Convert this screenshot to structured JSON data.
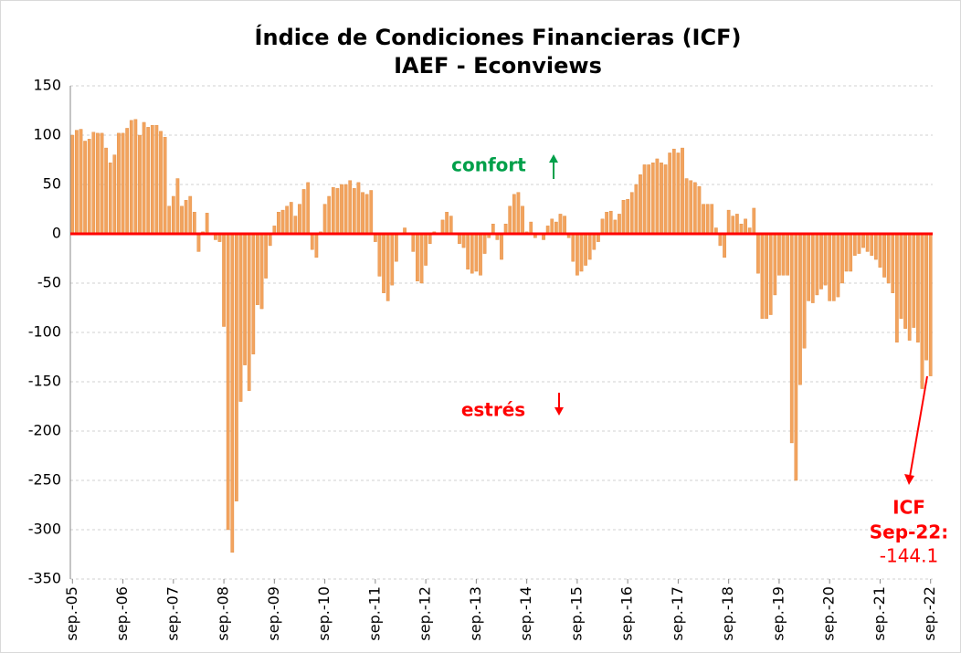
{
  "chart_data": {
    "type": "bar",
    "title": "Índice de Condiciones Financieras (ICF)",
    "subtitle": "IAEF - Econviews",
    "color": "#f2a35e",
    "zero_line_color": "#ff0000",
    "grid": true,
    "ylim": [
      -350,
      150
    ],
    "yticks": [
      150,
      100,
      50,
      0,
      -50,
      -100,
      -150,
      -200,
      -250,
      -300,
      -350
    ],
    "annotations": {
      "up": "confort",
      "down": "estrés",
      "last_title": "ICF",
      "last_date": "Sep-22:"
    },
    "categories": [
      "sep.-05",
      null,
      null,
      null,
      null,
      null,
      null,
      null,
      null,
      null,
      null,
      null,
      "sep.-06",
      null,
      null,
      null,
      null,
      null,
      null,
      null,
      null,
      null,
      null,
      null,
      "sep.-07",
      null,
      null,
      null,
      null,
      null,
      null,
      null,
      null,
      null,
      null,
      null,
      "sep.-08",
      null,
      null,
      null,
      null,
      null,
      null,
      null,
      null,
      null,
      null,
      null,
      "sep.-09",
      null,
      null,
      null,
      null,
      null,
      null,
      null,
      null,
      null,
      null,
      null,
      "sep.-10",
      null,
      null,
      null,
      null,
      null,
      null,
      null,
      null,
      null,
      null,
      null,
      "sep.-11",
      null,
      null,
      null,
      null,
      null,
      null,
      null,
      null,
      null,
      null,
      null,
      "sep.-12",
      null,
      null,
      null,
      null,
      null,
      null,
      null,
      null,
      null,
      null,
      null,
      "sep.-13",
      null,
      null,
      null,
      null,
      null,
      null,
      null,
      null,
      null,
      null,
      null,
      "sep.-14",
      null,
      null,
      null,
      null,
      null,
      null,
      null,
      null,
      null,
      null,
      null,
      "sep.-15",
      null,
      null,
      null,
      null,
      null,
      null,
      null,
      null,
      null,
      null,
      null,
      "sep.-16",
      null,
      null,
      null,
      null,
      null,
      null,
      null,
      null,
      null,
      null,
      null,
      "sep.-17",
      null,
      null,
      null,
      null,
      null,
      null,
      null,
      null,
      null,
      null,
      null,
      "sep.-18",
      null,
      null,
      null,
      null,
      null,
      null,
      null,
      null,
      null,
      null,
      null,
      "sep.-19",
      null,
      null,
      null,
      null,
      null,
      null,
      null,
      null,
      null,
      null,
      null,
      "sep.-20",
      null,
      null,
      null,
      null,
      null,
      null,
      null,
      null,
      null,
      null,
      null,
      "sep.-21",
      null,
      null,
      null,
      null,
      null,
      null,
      null,
      null,
      null,
      null,
      null,
      "sep.-22"
    ],
    "values": [
      100,
      105,
      106,
      94,
      96,
      103,
      102,
      102,
      87,
      72,
      80,
      102,
      102,
      107,
      115,
      116,
      100,
      113,
      108,
      110,
      110,
      104,
      98,
      28,
      38,
      56,
      28,
      34,
      38,
      22,
      -18,
      2,
      21,
      0,
      -6,
      -8,
      -94,
      -300,
      -323,
      -271,
      -170,
      -133,
      -159,
      -122,
      -72,
      -76,
      -45,
      -12,
      8,
      22,
      24,
      28,
      32,
      18,
      30,
      45,
      52,
      -16,
      -24,
      2,
      30,
      38,
      47,
      46,
      50,
      50,
      54,
      46,
      52,
      42,
      40,
      44,
      -8,
      -43,
      -60,
      -68,
      -52,
      -28,
      0,
      6,
      0,
      -18,
      -48,
      -50,
      -32,
      -10,
      2,
      0,
      14,
      22,
      18,
      0,
      -10,
      -14,
      -36,
      -40,
      -38,
      -42,
      -20,
      -4,
      10,
      -6,
      -26,
      10,
      28,
      40,
      42,
      28,
      2,
      12,
      -4,
      0,
      -6,
      8,
      15,
      12,
      20,
      18,
      -4,
      -28,
      -42,
      -38,
      -32,
      -26,
      -16,
      -8,
      15,
      22,
      23,
      14,
      20,
      34,
      35,
      42,
      50,
      60,
      70,
      70,
      72,
      76,
      72,
      70,
      82,
      86,
      82,
      87,
      56,
      54,
      52,
      48,
      30,
      30,
      30,
      6,
      -12,
      -24,
      24,
      18,
      20,
      10,
      15,
      6,
      26,
      -40,
      -86,
      -86,
      -82,
      -62,
      -42,
      -42,
      -42,
      -212,
      -250,
      -153,
      -116,
      -68,
      -70,
      -62,
      -56,
      -52,
      -68,
      -68,
      -64,
      -50,
      -38,
      -38,
      -22,
      -20,
      -14,
      -18,
      -22,
      -26,
      -34,
      -44,
      -50,
      -60,
      -110,
      -86,
      -96,
      -108,
      -95,
      -110,
      -157,
      -128,
      -144.1
    ]
  }
}
